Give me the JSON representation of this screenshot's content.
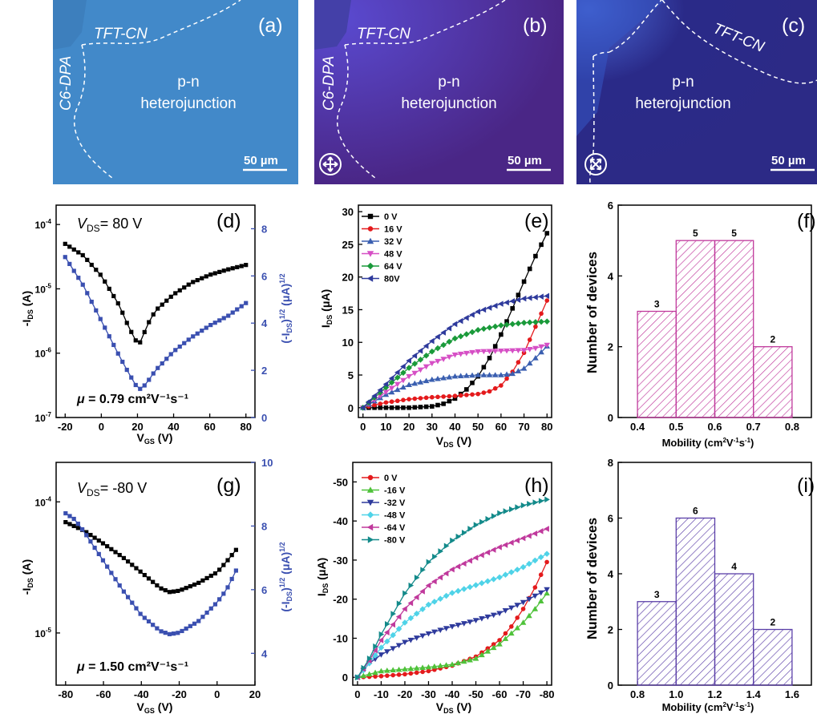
{
  "micrographs": [
    {
      "panel": "(a)",
      "labels": [
        "TFT-CN",
        "C6-DPA",
        "p-n",
        "heterojunction"
      ],
      "scalebar": "50 µm",
      "bg": "#4289c9"
    },
    {
      "panel": "(b)",
      "labels": [
        "TFT-CN",
        "C6-DPA",
        "p-n",
        "heterojunction"
      ],
      "scalebar": "50 µm",
      "bg": "#4a2a8c",
      "polarizer": "crossed-arrows-icon"
    },
    {
      "panel": "(c)",
      "labels": [
        "TFT-CN",
        "p-n",
        "heterojunction"
      ],
      "scalebar": "50 µm",
      "bg": "#2f2f8c",
      "polarizer": "diagonal-arrows-icon"
    }
  ],
  "chart_data": [
    {
      "panel": "(d)",
      "type": "line",
      "annotation_vds": "= 80 V",
      "annotation_mu": "= 0.79 cm²V⁻¹s⁻¹",
      "xlabel": "V_GS (V)",
      "ylabel": "-I_DS (A)",
      "ylabel_right": "(-I_DS)^1/2 (µA)^1/2",
      "xlim": [
        -25,
        85
      ],
      "xticks": [
        -20,
        0,
        20,
        40,
        60,
        80
      ],
      "ylim_log": [
        1e-07,
        0.0002
      ],
      "yticks_log": [
        1e-07,
        1e-06,
        1e-05,
        0.0001
      ],
      "y2lim": [
        0,
        9
      ],
      "y2ticks": [
        0,
        2,
        4,
        6,
        8
      ],
      "colors": {
        "left": "#000000",
        "right": "#3a4fb0"
      },
      "series": [
        {
          "axis": "left-log",
          "color": "#000000",
          "x": [
            -20,
            -10,
            0,
            10,
            15,
            20,
            22,
            25,
            30,
            40,
            50,
            60,
            70,
            80
          ],
          "y": [
            5e-05,
            3.3e-05,
            1.6e-05,
            5.5e-06,
            2.6e-06,
            1.4e-06,
            1.5e-06,
            2.6e-06,
            4.6e-06,
            8.2e-06,
            1.25e-05,
            1.65e-05,
            2e-05,
            2.35e-05
          ]
        },
        {
          "axis": "right",
          "color": "#3a4fb0",
          "x": [
            -20,
            -10,
            0,
            10,
            15,
            20,
            22,
            25,
            30,
            40,
            50,
            60,
            70,
            80
          ],
          "y": [
            6.8,
            5.6,
            4.1,
            2.6,
            1.9,
            1.25,
            1.2,
            1.45,
            2.0,
            2.8,
            3.4,
            3.9,
            4.3,
            4.85
          ]
        }
      ]
    },
    {
      "panel": "(e)",
      "type": "line",
      "xlabel": "V_DS (V)",
      "ylabel": "I_DS (µA)",
      "xlim": [
        -2,
        82
      ],
      "xticks": [
        0,
        10,
        20,
        30,
        40,
        50,
        60,
        70,
        80
      ],
      "ylim": [
        -1.5,
        31
      ],
      "yticks": [
        0,
        5,
        10,
        15,
        20,
        25,
        30
      ],
      "legend": [
        "0 V",
        "16 V",
        "32 V",
        "48 V",
        "64 V",
        "80V"
      ],
      "legend_position": "top-left",
      "series": [
        {
          "name": "0 V",
          "color": "#000000",
          "marker": "square",
          "x": [
            0,
            10,
            20,
            30,
            35,
            40,
            45,
            50,
            55,
            60,
            65,
            70,
            75,
            80
          ],
          "y": [
            0,
            0,
            0,
            0.2,
            0.6,
            1.4,
            2.8,
            4.8,
            7.6,
            11.2,
            15.2,
            19.3,
            23.2,
            26.7
          ]
        },
        {
          "name": "16 V",
          "color": "#e41a1c",
          "marker": "circle",
          "x": [
            0,
            5,
            10,
            20,
            30,
            40,
            50,
            55,
            60,
            65,
            70,
            75,
            80
          ],
          "y": [
            0,
            0.4,
            0.8,
            1.3,
            1.6,
            1.8,
            2.1,
            2.5,
            3.4,
            5.5,
            8.4,
            12.4,
            16.4
          ]
        },
        {
          "name": "32 V",
          "color": "#3a5fb0",
          "marker": "triangle-up",
          "x": [
            0,
            5,
            10,
            20,
            30,
            40,
            50,
            60,
            65,
            70,
            75,
            80
          ],
          "y": [
            0,
            1,
            2,
            3.5,
            4.3,
            4.8,
            5,
            5,
            5.2,
            6,
            7.6,
            9.4
          ]
        },
        {
          "name": "48 V",
          "color": "#d64fc5",
          "marker": "triangle-down",
          "x": [
            0,
            10,
            20,
            30,
            40,
            50,
            60,
            70,
            75,
            80
          ],
          "y": [
            0,
            2.4,
            4.8,
            6.8,
            8.1,
            8.6,
            8.7,
            8.8,
            9.1,
            9.6
          ]
        },
        {
          "name": "64 V",
          "color": "#1a9a3a",
          "marker": "diamond",
          "x": [
            0,
            10,
            20,
            30,
            40,
            50,
            60,
            70,
            80
          ],
          "y": [
            0,
            3.1,
            6.1,
            8.6,
            10.6,
            11.9,
            12.6,
            13,
            13.2
          ]
        },
        {
          "name": "80V",
          "color": "#2e3a9c",
          "marker": "triangle-left",
          "x": [
            0,
            10,
            20,
            30,
            40,
            50,
            60,
            70,
            80
          ],
          "y": [
            0,
            3.6,
            7.2,
            10.2,
            12.8,
            14.7,
            15.9,
            16.7,
            17.1
          ]
        }
      ]
    },
    {
      "panel": "(f)",
      "type": "bar",
      "xlabel": "Mobility (cm²V⁻¹s⁻¹)",
      "ylabel": "Number of devices",
      "bins": [
        [
          0.4,
          0.5
        ],
        [
          0.5,
          0.6
        ],
        [
          0.6,
          0.7
        ],
        [
          0.7,
          0.8
        ]
      ],
      "values": [
        3,
        5,
        5,
        2
      ],
      "xlim": [
        0.35,
        0.85
      ],
      "xticks": [
        0.4,
        0.5,
        0.6,
        0.7,
        0.8
      ],
      "ylim": [
        0,
        6
      ],
      "yticks": [
        0,
        2,
        4,
        6
      ],
      "colors": {
        "bar": "#c0399c"
      }
    },
    {
      "panel": "(g)",
      "type": "line",
      "annotation_vds": "= -80 V",
      "annotation_mu": "= 1.50 cm²V⁻¹s⁻¹",
      "xlabel": "V_GS (V)",
      "ylabel": "-I_DS (A)",
      "ylabel_right": "(-I_DS)^1/2 (µA)^1/2",
      "xlim": [
        -85,
        20
      ],
      "xticks": [
        -80,
        -60,
        -40,
        -20,
        0,
        20
      ],
      "ylim_log": [
        4e-06,
        0.0002
      ],
      "yticks_log": [
        1e-05,
        0.0001
      ],
      "y2lim": [
        3,
        10
      ],
      "y2ticks": [
        4,
        6,
        8,
        10
      ],
      "colors": {
        "left": "#000000",
        "right": "#3a4fb0"
      },
      "series": [
        {
          "axis": "left-log",
          "color": "#000000",
          "x": [
            -80,
            -70,
            -60,
            -50,
            -40,
            -30,
            -25,
            -20,
            -10,
            0,
            5,
            10
          ],
          "y": [
            7e-05,
            6e-05,
            4.8e-05,
            3.8e-05,
            2.9e-05,
            2.2e-05,
            2.05e-05,
            2.1e-05,
            2.4e-05,
            2.9e-05,
            3.5e-05,
            4.3e-05
          ]
        },
        {
          "axis": "right",
          "color": "#3a4fb0",
          "x": [
            -80,
            -75,
            -70,
            -60,
            -50,
            -40,
            -30,
            -25,
            -20,
            -10,
            0,
            5,
            10
          ],
          "y": [
            8.4,
            8.2,
            7.8,
            6.9,
            6.0,
            5.2,
            4.7,
            4.6,
            4.65,
            5.0,
            5.6,
            6.0,
            6.6
          ]
        }
      ]
    },
    {
      "panel": "(h)",
      "type": "line",
      "xlabel": "V_DS (V)",
      "ylabel": "I_DS (µA)",
      "xlim": [
        2,
        -82
      ],
      "xticks": [
        0,
        -10,
        -20,
        -30,
        -40,
        -50,
        -60,
        -70,
        -80
      ],
      "ylim": [
        2,
        -55
      ],
      "yticks": [
        0,
        -10,
        -20,
        -30,
        -40,
        -50
      ],
      "legend": [
        "0 V",
        "-16 V",
        "-32 V",
        "-48 V",
        "-64 V",
        "-80 V"
      ],
      "legend_position": "top-left",
      "series": [
        {
          "name": "0 V",
          "color": "#e41a1c",
          "marker": "circle",
          "x": [
            0,
            -10,
            -20,
            -30,
            -40,
            -50,
            -60,
            -65,
            -70,
            -75,
            -80
          ],
          "y": [
            0,
            -0.3,
            -0.8,
            -1.6,
            -3,
            -5.3,
            -9.5,
            -13,
            -17.5,
            -23,
            -29.5
          ]
        },
        {
          "name": "-16 V",
          "color": "#4fc23a",
          "marker": "triangle-up",
          "x": [
            0,
            -10,
            -20,
            -30,
            -40,
            -50,
            -60,
            -70,
            -75,
            -80
          ],
          "y": [
            0,
            -1.6,
            -2.1,
            -2.6,
            -3.3,
            -4.8,
            -8.5,
            -14,
            -17.5,
            -21.5
          ]
        },
        {
          "name": "-32 V",
          "color": "#2e3a9c",
          "marker": "triangle-down",
          "x": [
            0,
            -5,
            -10,
            -20,
            -30,
            -40,
            -50,
            -60,
            -70,
            -80
          ],
          "y": [
            0,
            -3.6,
            -5.8,
            -9,
            -11.2,
            -13,
            -14.6,
            -16.4,
            -19.2,
            -22.5
          ]
        },
        {
          "name": "-48 V",
          "color": "#4fd3e8",
          "marker": "diamond",
          "x": [
            0,
            -5,
            -10,
            -20,
            -30,
            -40,
            -50,
            -60,
            -70,
            -80
          ],
          "y": [
            0,
            -3.6,
            -7.6,
            -14,
            -18.6,
            -21.6,
            -23.6,
            -25.6,
            -28.2,
            -31.6
          ]
        },
        {
          "name": "-64 V",
          "color": "#c0399c",
          "marker": "triangle-left",
          "x": [
            0,
            -5,
            -10,
            -20,
            -30,
            -40,
            -50,
            -60,
            -70,
            -80
          ],
          "y": [
            0,
            -4.3,
            -9.5,
            -17.5,
            -23.5,
            -27.6,
            -30.6,
            -33.3,
            -35.6,
            -38
          ]
        },
        {
          "name": "-80 V",
          "color": "#138a8a",
          "marker": "triangle-right",
          "x": [
            0,
            -5,
            -10,
            -20,
            -30,
            -40,
            -50,
            -60,
            -70,
            -80
          ],
          "y": [
            0,
            -4.8,
            -11,
            -21.5,
            -29.5,
            -35,
            -39,
            -42,
            -44,
            -45.5
          ]
        }
      ]
    },
    {
      "panel": "(i)",
      "type": "bar",
      "xlabel": "Mobility (cm²V⁻¹s⁻¹)",
      "ylabel": "Number of devices",
      "bins": [
        [
          0.8,
          1.0
        ],
        [
          1.0,
          1.2
        ],
        [
          1.2,
          1.4
        ],
        [
          1.4,
          1.6
        ]
      ],
      "values": [
        3,
        6,
        4,
        2
      ],
      "xlim": [
        0.7,
        1.7
      ],
      "xticks": [
        0.8,
        1.0,
        1.2,
        1.4,
        1.6
      ],
      "ylim": [
        0,
        8
      ],
      "yticks": [
        0,
        2,
        4,
        6,
        8
      ],
      "colors": {
        "bar": "#5b3fa8"
      }
    }
  ]
}
